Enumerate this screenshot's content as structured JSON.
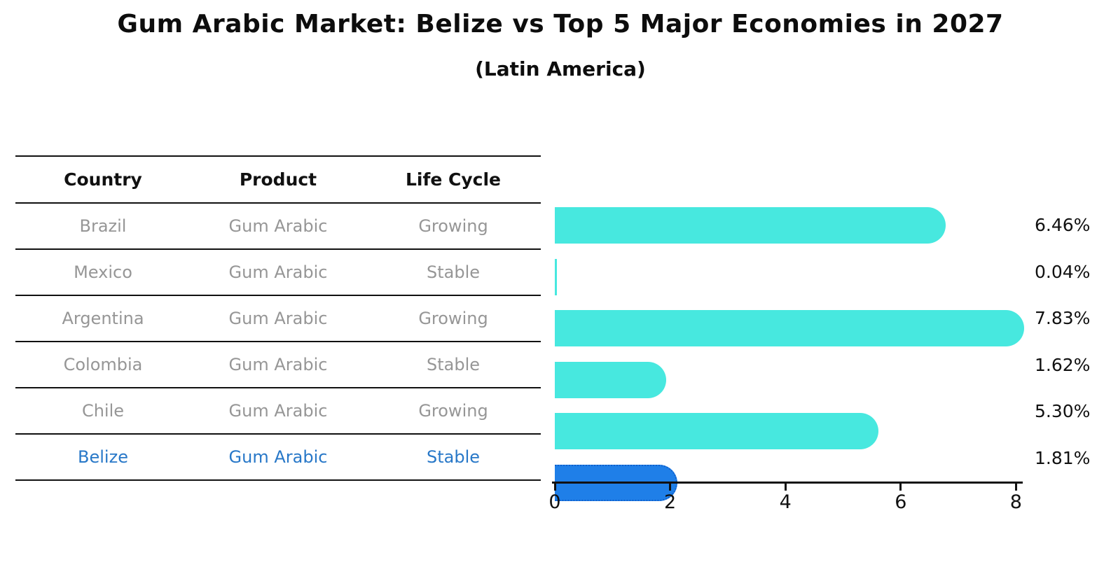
{
  "header": {
    "title": "Gum Arabic Market: Belize vs Top 5 Major Economies in 2027",
    "subtitle": "(Latin America)"
  },
  "table": {
    "columns": [
      "Country",
      "Product",
      "Life Cycle"
    ],
    "rows": [
      {
        "country": "Brazil",
        "product": "Gum Arabic",
        "life_cycle": "Growing"
      },
      {
        "country": "Mexico",
        "product": "Gum Arabic",
        "life_cycle": "Stable"
      },
      {
        "country": "Argentina",
        "product": "Gum Arabic",
        "life_cycle": "Growing"
      },
      {
        "country": "Colombia",
        "product": "Gum Arabic",
        "life_cycle": "Stable"
      },
      {
        "country": "Chile",
        "product": "Gum Arabic",
        "life_cycle": "Growing"
      },
      {
        "country": "Belize",
        "product": "Gum Arabic",
        "life_cycle": "Stable"
      }
    ]
  },
  "chart_data": {
    "type": "bar",
    "orientation": "horizontal",
    "title": "Gum Arabic Market: Belize vs Top 5 Major Economies in 2027",
    "subtitle": "(Latin America)",
    "categories": [
      "Brazil",
      "Mexico",
      "Argentina",
      "Colombia",
      "Chile",
      "Belize"
    ],
    "values": [
      6.46,
      0.04,
      7.83,
      1.62,
      5.3,
      1.81
    ],
    "value_labels": [
      "6.46%",
      "0.04%",
      "7.83%",
      "1.62%",
      "5.30%",
      "1.81%"
    ],
    "x_ticks": [
      0,
      2,
      4,
      6,
      8
    ],
    "xlim": [
      0,
      8.2
    ],
    "highlight_index": 5,
    "grid": false,
    "legend": "none"
  },
  "colors": {
    "bar": "#47e8df",
    "highlight_bar": "#1f7fe8",
    "highlight_border": "#1060cc",
    "highlight_text": "#2878c8",
    "cell_text": "#969696",
    "heading_text": "#111111",
    "axis": "#111111"
  }
}
